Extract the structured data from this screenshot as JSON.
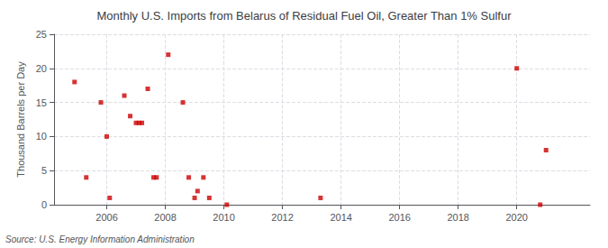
{
  "chart_data": {
    "type": "scatter",
    "title": "Monthly U.S. Imports from Belarus of Residual Fuel Oil, Greater Than 1% Sulfur",
    "ylabel": "Thousand Barrels per Day",
    "source": "Source: U.S. Energy Information Administration",
    "x": [
      2004.9,
      2005.3,
      2005.8,
      2006.0,
      2006.1,
      2006.6,
      2006.8,
      2007.0,
      2007.1,
      2007.2,
      2007.4,
      2007.6,
      2007.7,
      2008.1,
      2008.6,
      2008.8,
      2009.0,
      2009.1,
      2009.3,
      2009.5,
      2010.1,
      2013.3,
      2020.0,
      2020.8,
      2021.0
    ],
    "values": [
      18,
      4,
      15,
      10,
      1,
      16,
      13,
      12,
      12,
      12,
      17,
      4,
      4,
      22,
      15,
      4,
      1,
      2,
      4,
      1,
      0,
      1,
      20,
      0,
      8
    ],
    "color": "#cc0000",
    "marker": "square",
    "xlim": [
      2004.2,
      2022.5
    ],
    "xticks": [
      2006,
      2008,
      2010,
      2012,
      2014,
      2016,
      2018,
      2020
    ],
    "ylim": [
      0,
      25
    ],
    "yticks": [
      0,
      5,
      10,
      15,
      20,
      25
    ],
    "grid": true
  }
}
